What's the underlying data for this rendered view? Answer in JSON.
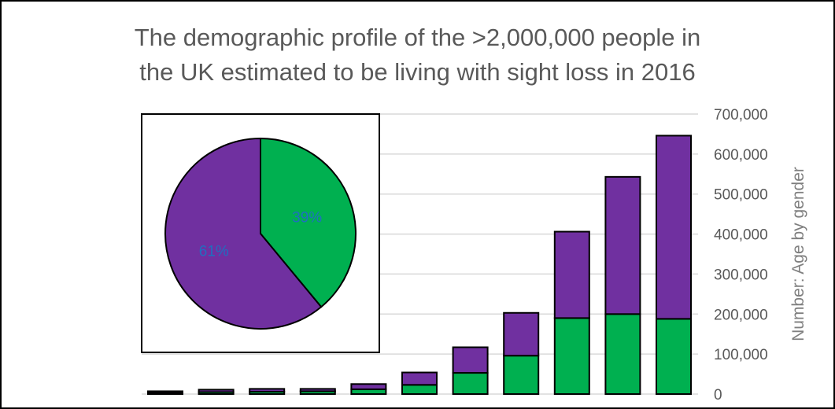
{
  "title": {
    "line1": "The demographic profile of the >2,000,000 people in",
    "line2": "the UK estimated to be living with sight loss in 2016"
  },
  "colors": {
    "male": "#00b050",
    "female": "#7030a0",
    "grid": "#d9d9d9",
    "text": "#595959",
    "pie_label": "#1f6fc0"
  },
  "chart_data": [
    {
      "type": "bar",
      "stacked": true,
      "title": "The demographic profile of the >2,000,000 people in the UK estimated to be living with sight loss in 2016",
      "ylabel": "Number: Age by gender",
      "ylim": [
        0,
        700000
      ],
      "y_ticks": [
        0,
        100000,
        200000,
        300000,
        400000,
        500000,
        600000,
        700000
      ],
      "y_tick_labels": [
        "0",
        "100,000",
        "200,000",
        "300,000",
        "400,000",
        "500,000",
        "600,000",
        "700,000"
      ],
      "y_axis_position": "right",
      "grid": true,
      "categories": [
        "",
        "",
        "",
        "",
        "",
        "",
        "",
        "",
        "",
        "",
        ""
      ],
      "series": [
        {
          "color": "#00b050",
          "values": [
            3000,
            5000,
            6000,
            7000,
            12000,
            23000,
            53000,
            96000,
            190000,
            200000,
            188000
          ]
        },
        {
          "color": "#7030a0",
          "values": [
            4000,
            6000,
            7000,
            6000,
            13000,
            31000,
            64000,
            107000,
            216000,
            343000,
            458000
          ]
        }
      ]
    },
    {
      "type": "pie",
      "position": "inset-left",
      "slices": [
        {
          "value": 39,
          "label": "39%",
          "color": "#00b050"
        },
        {
          "value": 61,
          "label": "61%",
          "color": "#7030a0"
        }
      ]
    }
  ]
}
